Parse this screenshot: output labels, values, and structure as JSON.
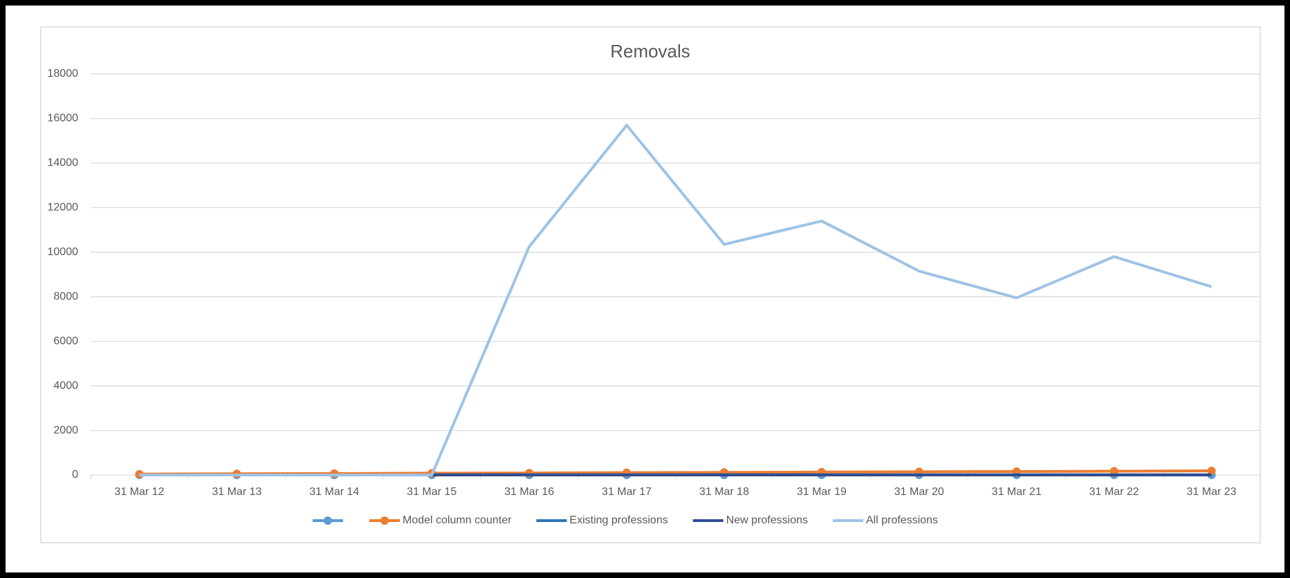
{
  "chart_data": {
    "type": "line",
    "title": "Removals",
    "categories": [
      "31 Mar 12",
      "31 Mar 13",
      "31 Mar 14",
      "31 Mar 15",
      "31 Mar 16",
      "31 Mar 17",
      "31 Mar 18",
      "31 Mar 19",
      "31 Mar 20",
      "31 Mar 21",
      "31 Mar 22",
      "31 Mar 23"
    ],
    "series": [
      {
        "color": "#5b9bd5",
        "markers": true,
        "values": [
          0,
          0,
          0,
          0,
          0,
          0,
          0,
          0,
          0,
          0,
          0,
          0
        ]
      },
      {
        "name": "Model column counter",
        "color": "#ed7d31",
        "markers": true,
        "values": [
          40,
          55,
          65,
          80,
          90,
          105,
          115,
          130,
          145,
          155,
          170,
          185
        ]
      },
      {
        "name": "Existing professions",
        "color": "#2e75b6",
        "markers": false,
        "values": [
          null,
          null,
          null,
          10,
          10,
          10,
          10,
          10,
          10,
          10,
          10,
          10
        ]
      },
      {
        "name": "New professions",
        "color": "#2f4d8f",
        "markers": false,
        "values": [
          null,
          null,
          null,
          0,
          0,
          0,
          0,
          0,
          0,
          0,
          0,
          0
        ]
      },
      {
        "name": "All professions",
        "color": "#9dc3e6",
        "markers": false,
        "values": [
          0,
          0,
          0,
          0,
          10250,
          15700,
          10350,
          11400,
          9150,
          7950,
          9800,
          8450
        ]
      }
    ],
    "ylim": [
      0,
      18000
    ],
    "yticks": [
      0,
      2000,
      4000,
      6000,
      8000,
      10000,
      12000,
      14000,
      16000,
      18000
    ],
    "grid": true,
    "legend": "bottom"
  }
}
